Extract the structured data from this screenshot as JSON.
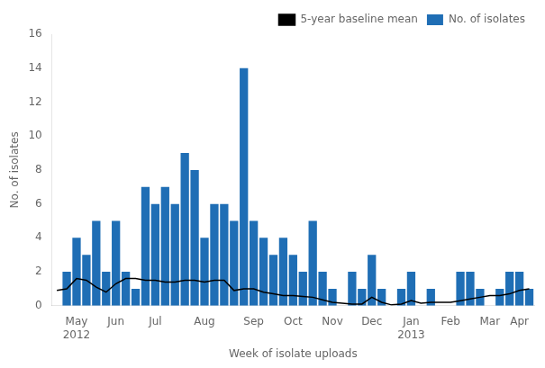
{
  "chart_data": {
    "type": "bar",
    "xlabel": "Week of isolate uploads",
    "ylabel": "No. of isolates",
    "categories": [
      null,
      null,
      "May",
      null,
      null,
      null,
      "Jun",
      null,
      null,
      null,
      "Jul",
      null,
      null,
      null,
      null,
      "Aug",
      null,
      null,
      null,
      null,
      "Sep",
      null,
      null,
      null,
      "Oct",
      null,
      null,
      null,
      "Nov",
      null,
      null,
      null,
      "Dec",
      null,
      null,
      null,
      "Jan",
      null,
      null,
      null,
      "Feb",
      null,
      null,
      null,
      "Mar",
      null,
      null,
      "Apr",
      null
    ],
    "annotations": [
      {
        "text": "2012",
        "category": "May"
      },
      {
        "text": "2013",
        "category": "Jan"
      }
    ],
    "series": [
      {
        "name": "No. of isolates",
        "type": "bar",
        "color": "#1f6eb5",
        "values": [
          0,
          2,
          4,
          3,
          5,
          2,
          5,
          2,
          1,
          7,
          6,
          7,
          6,
          9,
          8,
          4,
          6,
          6,
          5,
          14,
          5,
          4,
          3,
          4,
          3,
          2,
          5,
          2,
          1,
          0,
          2,
          1,
          3,
          1,
          0,
          1,
          2,
          0,
          1,
          0,
          0,
          2,
          2,
          1,
          0,
          1,
          2,
          2,
          1
        ]
      },
      {
        "name": "5-year baseline mean",
        "type": "line",
        "color": "#000000",
        "values": [
          0.9,
          1.0,
          1.6,
          1.5,
          1.1,
          0.8,
          1.3,
          1.6,
          1.6,
          1.5,
          1.5,
          1.4,
          1.4,
          1.5,
          1.5,
          1.4,
          1.5,
          1.5,
          0.9,
          1.0,
          1.0,
          0.8,
          0.7,
          0.6,
          0.6,
          0.55,
          0.5,
          0.35,
          0.2,
          0.15,
          0.1,
          0.1,
          0.5,
          0.2,
          0.05,
          0.1,
          0.3,
          0.15,
          0.2,
          0.2,
          0.2,
          0.3,
          0.4,
          0.5,
          0.6,
          0.6,
          0.7,
          0.9,
          1.0
        ]
      }
    ],
    "ylim": [
      0,
      16
    ],
    "yticks": [
      0,
      2,
      4,
      6,
      8,
      10,
      12,
      14,
      16
    ],
    "grid": false,
    "legend": "upper right"
  }
}
